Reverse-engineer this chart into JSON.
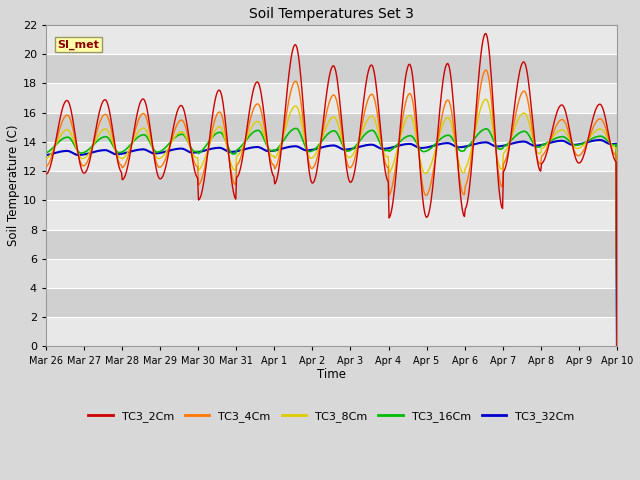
{
  "title": "Soil Temperatures Set 3",
  "xlabel": "Time",
  "ylabel": "Soil Temperature (C)",
  "ylim": [
    0,
    22
  ],
  "yticks": [
    0,
    2,
    4,
    6,
    8,
    10,
    12,
    14,
    16,
    18,
    20,
    22
  ],
  "series_colors": {
    "TC3_2Cm": "#cc0000",
    "TC3_4Cm": "#ff7700",
    "TC3_8Cm": "#ddcc00",
    "TC3_16Cm": "#00bb00",
    "TC3_32Cm": "#0000cc"
  },
  "legend_label": "SI_met",
  "bg_color": "#d8d8d8",
  "plot_bg_light": "#e8e8e8",
  "plot_bg_dark": "#d0d0d0",
  "grid_color": "#ffffff",
  "x_labels": [
    "Mar 26",
    "Mar 27",
    "Mar 28",
    "Mar 29",
    "Mar 30",
    "Mar 31",
    "Apr 1",
    "Apr 2",
    "Apr 3",
    "Apr 4",
    "Apr 5",
    "Apr 6",
    "Apr 7",
    "Apr 8",
    "Apr 9",
    "Apr 10"
  ],
  "n_days": 15,
  "figsize": [
    6.4,
    4.8
  ],
  "dpi": 100
}
